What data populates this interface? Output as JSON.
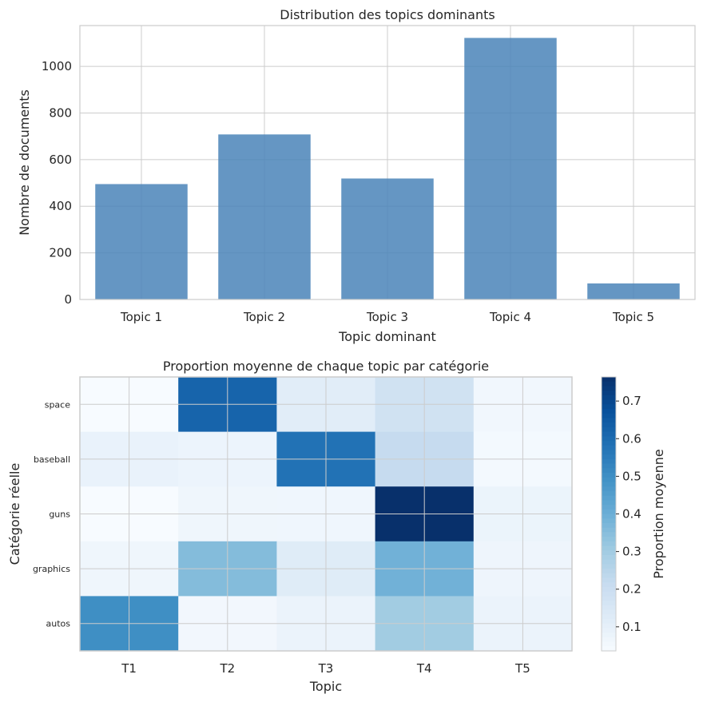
{
  "chart_data": [
    {
      "type": "bar",
      "title": "Distribution des topics dominants",
      "xlabel": "Topic dominant",
      "ylabel": "Nombre de documents",
      "categories": [
        "Topic 1",
        "Topic 2",
        "Topic 3",
        "Topic 4",
        "Topic 5"
      ],
      "values": [
        495,
        708,
        519,
        1122,
        69
      ],
      "ylim": [
        0,
        1175
      ],
      "yticks": [
        0,
        200,
        400,
        600,
        800,
        1000
      ],
      "grid": true,
      "color": "#4a84b9"
    },
    {
      "type": "heatmap",
      "title": "Proportion moyenne de chaque topic par catégorie",
      "xlabel": "Topic",
      "ylabel": "Catégorie réelle",
      "x": [
        "T1",
        "T2",
        "T3",
        "T4",
        "T5"
      ],
      "y": [
        "space",
        "baseball",
        "guns",
        "graphics",
        "autos"
      ],
      "values": [
        [
          0.036,
          0.62,
          0.116,
          0.18,
          0.058
        ],
        [
          0.087,
          0.075,
          0.58,
          0.218,
          0.05
        ],
        [
          0.037,
          0.066,
          0.064,
          0.764,
          0.078
        ],
        [
          0.066,
          0.356,
          0.123,
          0.39,
          0.07
        ],
        [
          0.5,
          0.056,
          0.08,
          0.3,
          0.08
        ]
      ],
      "colormap": "Blues",
      "vmin": 0.036,
      "vmax": 0.764,
      "colorbar_label": "Proportion moyenne",
      "colorbar_ticks": [
        0.1,
        0.2,
        0.3,
        0.4,
        0.5,
        0.6,
        0.7
      ],
      "grid": true
    }
  ]
}
